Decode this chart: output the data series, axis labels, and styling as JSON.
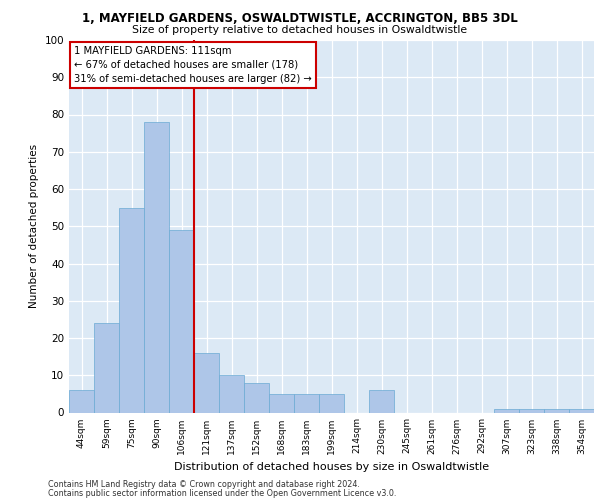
{
  "title": "1, MAYFIELD GARDENS, OSWALDTWISTLE, ACCRINGTON, BB5 3DL",
  "subtitle": "Size of property relative to detached houses in Oswaldtwistle",
  "xlabel": "Distribution of detached houses by size in Oswaldtwistle",
  "ylabel": "Number of detached properties",
  "categories": [
    "44sqm",
    "59sqm",
    "75sqm",
    "90sqm",
    "106sqm",
    "121sqm",
    "137sqm",
    "152sqm",
    "168sqm",
    "183sqm",
    "199sqm",
    "214sqm",
    "230sqm",
    "245sqm",
    "261sqm",
    "276sqm",
    "292sqm",
    "307sqm",
    "323sqm",
    "338sqm",
    "354sqm"
  ],
  "values": [
    6,
    24,
    55,
    78,
    49,
    16,
    10,
    8,
    5,
    5,
    5,
    0,
    6,
    0,
    0,
    0,
    0,
    1,
    1,
    1,
    1
  ],
  "bar_color": "#aec6e8",
  "bar_edge_color": "#6aaad4",
  "annotation_text": "1 MAYFIELD GARDENS: 111sqm\n← 67% of detached houses are smaller (178)\n31% of semi-detached houses are larger (82) →",
  "annotation_box_color": "#ffffff",
  "annotation_box_edge": "#cc0000",
  "vline_color": "#cc0000",
  "vline_x": 4.5,
  "ylim": [
    0,
    100
  ],
  "yticks": [
    0,
    10,
    20,
    30,
    40,
    50,
    60,
    70,
    80,
    90,
    100
  ],
  "background_color": "#dce9f5",
  "footer_line1": "Contains HM Land Registry data © Crown copyright and database right 2024.",
  "footer_line2": "Contains public sector information licensed under the Open Government Licence v3.0."
}
